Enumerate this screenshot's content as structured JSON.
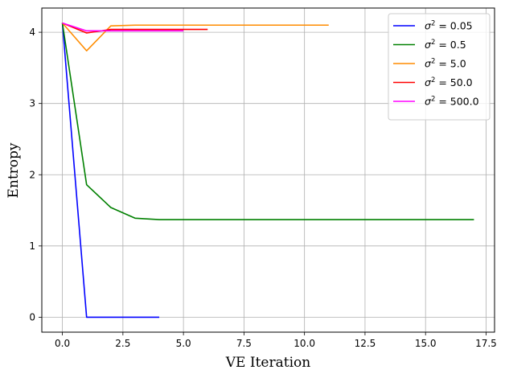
{
  "chart_data": {
    "type": "line",
    "xlabel": "VE Iteration",
    "ylabel": "Entropy",
    "xlim": [
      -0.85,
      17.85
    ],
    "ylim": [
      -0.21,
      4.34
    ],
    "xticks": [
      0.0,
      2.5,
      5.0,
      7.5,
      10.0,
      12.5,
      15.0,
      17.5
    ],
    "xtick_labels": [
      "0.0",
      "2.5",
      "5.0",
      "7.5",
      "10.0",
      "12.5",
      "15.0",
      "17.5"
    ],
    "yticks": [
      0,
      1,
      2,
      3,
      4
    ],
    "ytick_labels": [
      "0",
      "1",
      "2",
      "3",
      "4"
    ],
    "grid": true,
    "legend_position": "top-right",
    "series": [
      {
        "name": "0.05",
        "color": "#0000ff",
        "x": [
          0,
          1,
          2,
          3,
          4
        ],
        "y": [
          4.13,
          0.0,
          0.0,
          0.0,
          0.0
        ]
      },
      {
        "name": "0.5",
        "color": "#008000",
        "x": [
          0,
          1,
          2,
          3,
          4,
          5,
          6,
          7,
          8,
          9,
          10,
          11,
          12,
          13,
          14,
          15,
          16,
          17
        ],
        "y": [
          4.13,
          1.86,
          1.54,
          1.39,
          1.37,
          1.37,
          1.37,
          1.37,
          1.37,
          1.37,
          1.37,
          1.37,
          1.37,
          1.37,
          1.37,
          1.37,
          1.37,
          1.37
        ]
      },
      {
        "name": "5.0",
        "color": "#ff8c00",
        "x": [
          0,
          1,
          2,
          3,
          4,
          5,
          6,
          7,
          8,
          9,
          10,
          11
        ],
        "y": [
          4.13,
          3.74,
          4.09,
          4.1,
          4.1,
          4.1,
          4.1,
          4.1,
          4.1,
          4.1,
          4.1,
          4.1
        ]
      },
      {
        "name": "50.0",
        "color": "#ff0000",
        "x": [
          0,
          1,
          2,
          3,
          4,
          5,
          6
        ],
        "y": [
          4.13,
          3.99,
          4.04,
          4.04,
          4.04,
          4.04,
          4.04
        ]
      },
      {
        "name": "500.0",
        "color": "#ff00ff",
        "x": [
          0,
          1,
          2,
          3,
          4,
          5
        ],
        "y": [
          4.13,
          4.02,
          4.02,
          4.02,
          4.02,
          4.02
        ]
      }
    ],
    "legend_prefix": "σ",
    "legend_sup": "2",
    "legend_equals": " = "
  }
}
